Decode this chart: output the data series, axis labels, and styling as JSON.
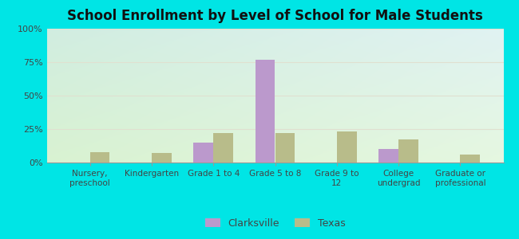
{
  "title": "School Enrollment by Level of School for Male Students",
  "categories": [
    "Nursery,\npreschool",
    "Kindergarten",
    "Grade 1 to 4",
    "Grade 5 to 8",
    "Grade 9 to\n12",
    "College\nundergrad",
    "Graduate or\nprofessional"
  ],
  "clarksville": [
    0,
    0,
    15,
    77,
    0,
    10,
    0
  ],
  "texas": [
    8,
    7,
    22,
    22,
    23,
    17,
    6
  ],
  "clarksville_color": "#bb99cc",
  "texas_color": "#b8bc8a",
  "bg_outer": "#00e5e5",
  "bg_plot_topleft": "#d0ede8",
  "bg_plot_topright": "#c8e8e8",
  "bg_plot_bottom": "#d8eecc",
  "title_color": "#111111",
  "ylabel_ticks": [
    "0%",
    "25%",
    "50%",
    "75%",
    "100%"
  ],
  "ylim": [
    0,
    100
  ],
  "bar_width": 0.32,
  "legend_labels": [
    "Clarksville",
    "Texas"
  ],
  "grid_color": "#e0e0d0",
  "tick_label_color": "#444444"
}
